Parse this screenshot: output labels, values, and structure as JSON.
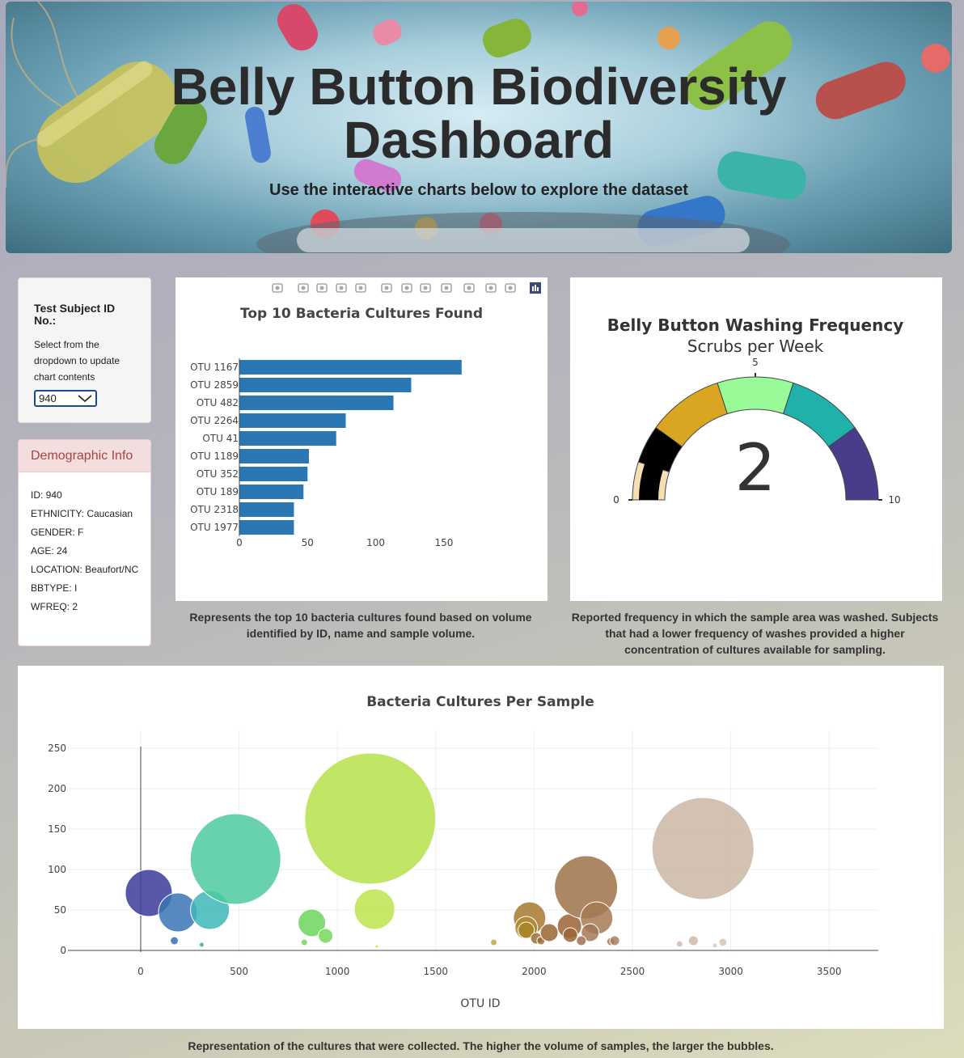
{
  "header": {
    "title_line1": "Belly Button Biodiversity",
    "title_line2": "Dashboard",
    "subtitle": "Use the interactive charts below to explore the dataset"
  },
  "selector": {
    "title": "Test Subject ID No.:",
    "hint": "Select from the dropdown to update chart contents",
    "selected": "940"
  },
  "demographics": {
    "heading": "Demographic Info",
    "rows": [
      "ID: 940",
      "ETHNICITY: Caucasian",
      "GENDER: F",
      "AGE: 24",
      "LOCATION: Beaufort/NC",
      "BBTYPE: I",
      "WFREQ: 2"
    ]
  },
  "modebar_icons": [
    "camera-icon",
    "zoom-icon",
    "pan-icon",
    "box-select-icon",
    "lasso-icon",
    "zoom-in-icon",
    "zoom-out-icon",
    "autoscale-icon",
    "reset-axes-icon",
    "spike-lines-icon",
    "hover-closest-icon",
    "hover-compare-icon",
    "plotly-logo-icon"
  ],
  "bar_caption": "Represents the top 10 bacteria cultures found based on volume identified by ID, name and sample volume.",
  "gauge_caption": "Reported frequency in which the sample area was washed. Subjects that had a lower frequency of washes provided a higher concentration of cultures available for sampling.",
  "bubble_caption": "Representation of the cultures that were collected. The higher the volume of samples, the larger the bubbles.",
  "chart_data": [
    {
      "type": "bar",
      "orientation": "horizontal",
      "title": "Top 10 Bacteria Cultures Found",
      "categories": [
        "OTU 1167",
        "OTU 2859",
        "OTU 482",
        "OTU 2264",
        "OTU 41",
        "OTU 1189",
        "OTU 352",
        "OTU 189",
        "OTU 2318",
        "OTU 1977"
      ],
      "values": [
        163,
        126,
        113,
        78,
        71,
        51,
        50,
        47,
        40,
        40
      ],
      "xticks": [
        0,
        50,
        100,
        150
      ],
      "xlim": [
        0,
        172
      ],
      "color": "#2a77b4"
    },
    {
      "type": "gauge",
      "title": "Belly Button Washing Frequency",
      "subtitle": "Scrubs per Week",
      "value": 2,
      "range": [
        0,
        10
      ],
      "tick_labels": [
        "0",
        "5",
        "10"
      ],
      "steps": [
        {
          "range": [
            0,
            1
          ],
          "color": "#f5deb3"
        },
        {
          "range": [
            1,
            2
          ],
          "color": "#000000"
        },
        {
          "range": [
            2,
            4
          ],
          "color": "#daa520"
        },
        {
          "range": [
            4,
            6
          ],
          "color": "#98fb98"
        },
        {
          "range": [
            6,
            8
          ],
          "color": "#20b2aa"
        },
        {
          "range": [
            8,
            10
          ],
          "color": "#483d8b"
        }
      ]
    },
    {
      "type": "scatter",
      "mode": "bubble",
      "title": "Bacteria Cultures Per Sample",
      "xlabel": "OTU ID",
      "xlim": [
        -370,
        3750
      ],
      "ylim": [
        -2,
        272
      ],
      "xticks": [
        0,
        500,
        1000,
        1500,
        2000,
        2500,
        3000,
        3500
      ],
      "yticks": [
        0,
        50,
        100,
        150,
        200,
        250
      ],
      "points": [
        {
          "x": 41,
          "y": 71,
          "r": 29,
          "color": "#3a3b9a"
        },
        {
          "x": 189,
          "y": 47,
          "r": 24,
          "color": "#3a74b5"
        },
        {
          "x": 171,
          "y": 12,
          "r": 5,
          "color": "#3b6fb3"
        },
        {
          "x": 352,
          "y": 50,
          "r": 24,
          "color": "#3db7b9"
        },
        {
          "x": 310,
          "y": 7,
          "r": 3,
          "color": "#3aa7aa"
        },
        {
          "x": 482,
          "y": 113,
          "r": 56,
          "color": "#4dcaa0"
        },
        {
          "x": 870,
          "y": 34,
          "r": 17,
          "color": "#6cd65e"
        },
        {
          "x": 940,
          "y": 18,
          "r": 9,
          "color": "#77d85a"
        },
        {
          "x": 832,
          "y": 10,
          "r": 4,
          "color": "#74d65a"
        },
        {
          "x": 1167,
          "y": 163,
          "r": 81,
          "color": "#b6e04a"
        },
        {
          "x": 1189,
          "y": 51,
          "r": 25,
          "color": "#bde34c"
        },
        {
          "x": 1200,
          "y": 5,
          "r": 2,
          "color": "#bde34c"
        },
        {
          "x": 1795,
          "y": 10,
          "r": 4,
          "color": "#c2a63d"
        },
        {
          "x": 1977,
          "y": 40,
          "r": 20,
          "color": "#a6792f"
        },
        {
          "x": 1960,
          "y": 28,
          "r": 14,
          "color": "#b08a2f"
        },
        {
          "x": 1960,
          "y": 25,
          "r": 10,
          "color": "#a88426"
        },
        {
          "x": 2011,
          "y": 15,
          "r": 7,
          "color": "#9e6f33"
        },
        {
          "x": 2035,
          "y": 12,
          "r": 5,
          "color": "#9c6a35"
        },
        {
          "x": 2077,
          "y": 22,
          "r": 11,
          "color": "#996534"
        },
        {
          "x": 2180,
          "y": 30,
          "r": 15,
          "color": "#9a6336"
        },
        {
          "x": 2184,
          "y": 19,
          "r": 9,
          "color": "#9b6538"
        },
        {
          "x": 2264,
          "y": 78,
          "r": 39,
          "color": "#9e7248"
        },
        {
          "x": 2318,
          "y": 40,
          "r": 20,
          "color": "#a57a55"
        },
        {
          "x": 2285,
          "y": 22,
          "r": 11,
          "color": "#a47856"
        },
        {
          "x": 2240,
          "y": 12,
          "r": 6,
          "color": "#9f7250"
        },
        {
          "x": 2390,
          "y": 11,
          "r": 5,
          "color": "#a67b5b"
        },
        {
          "x": 2410,
          "y": 12,
          "r": 6,
          "color": "#a97f60"
        },
        {
          "x": 2859,
          "y": 126,
          "r": 63,
          "color": "#cbb7a5"
        },
        {
          "x": 2810,
          "y": 12,
          "r": 6,
          "color": "#cfb8a6"
        },
        {
          "x": 2740,
          "y": 8,
          "r": 4,
          "color": "#d2bcab"
        },
        {
          "x": 2960,
          "y": 10,
          "r": 5,
          "color": "#d6c4b6"
        },
        {
          "x": 2920,
          "y": 6,
          "r": 3,
          "color": "#d8c8bb"
        }
      ]
    }
  ]
}
